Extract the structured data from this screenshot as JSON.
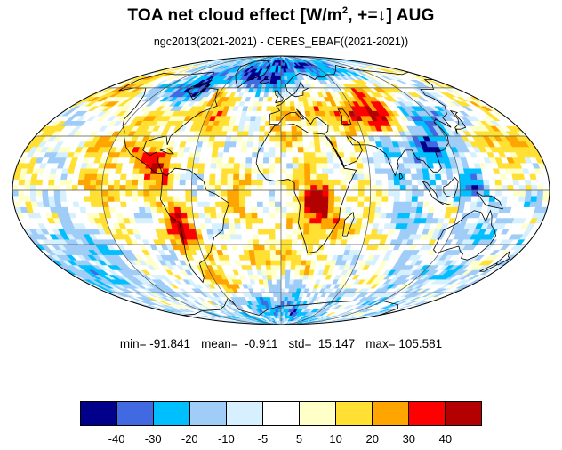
{
  "title": {
    "main": "TOA net cloud effect [W/m",
    "sup": "2",
    "tail": ", +=↓]  AUG"
  },
  "subtitle": "ngc2013(2021-2021) - CERES_EBAF((2021-2021))",
  "stats": {
    "min": "min= -91.841",
    "mean": "mean=  -0.911",
    "std": "std=  15.147",
    "max": "max= 105.581"
  },
  "colorbar": {
    "colors": [
      "#00008b",
      "#4169e1",
      "#00bfff",
      "#9fcdf7",
      "#d6f0ff",
      "#ffffff",
      "#ffffc8",
      "#ffe033",
      "#ffa500",
      "#ff0000",
      "#b30000"
    ],
    "labels": [
      "-40",
      "-30",
      "-20",
      "-10",
      "-5",
      "5",
      "10",
      "20",
      "30",
      "40"
    ]
  },
  "map": {
    "projection": "mollweide",
    "field": "TOA net cloud radiative effect difference, August",
    "units": "W/m2",
    "features": [
      "coastlines",
      "graticule"
    ]
  }
}
